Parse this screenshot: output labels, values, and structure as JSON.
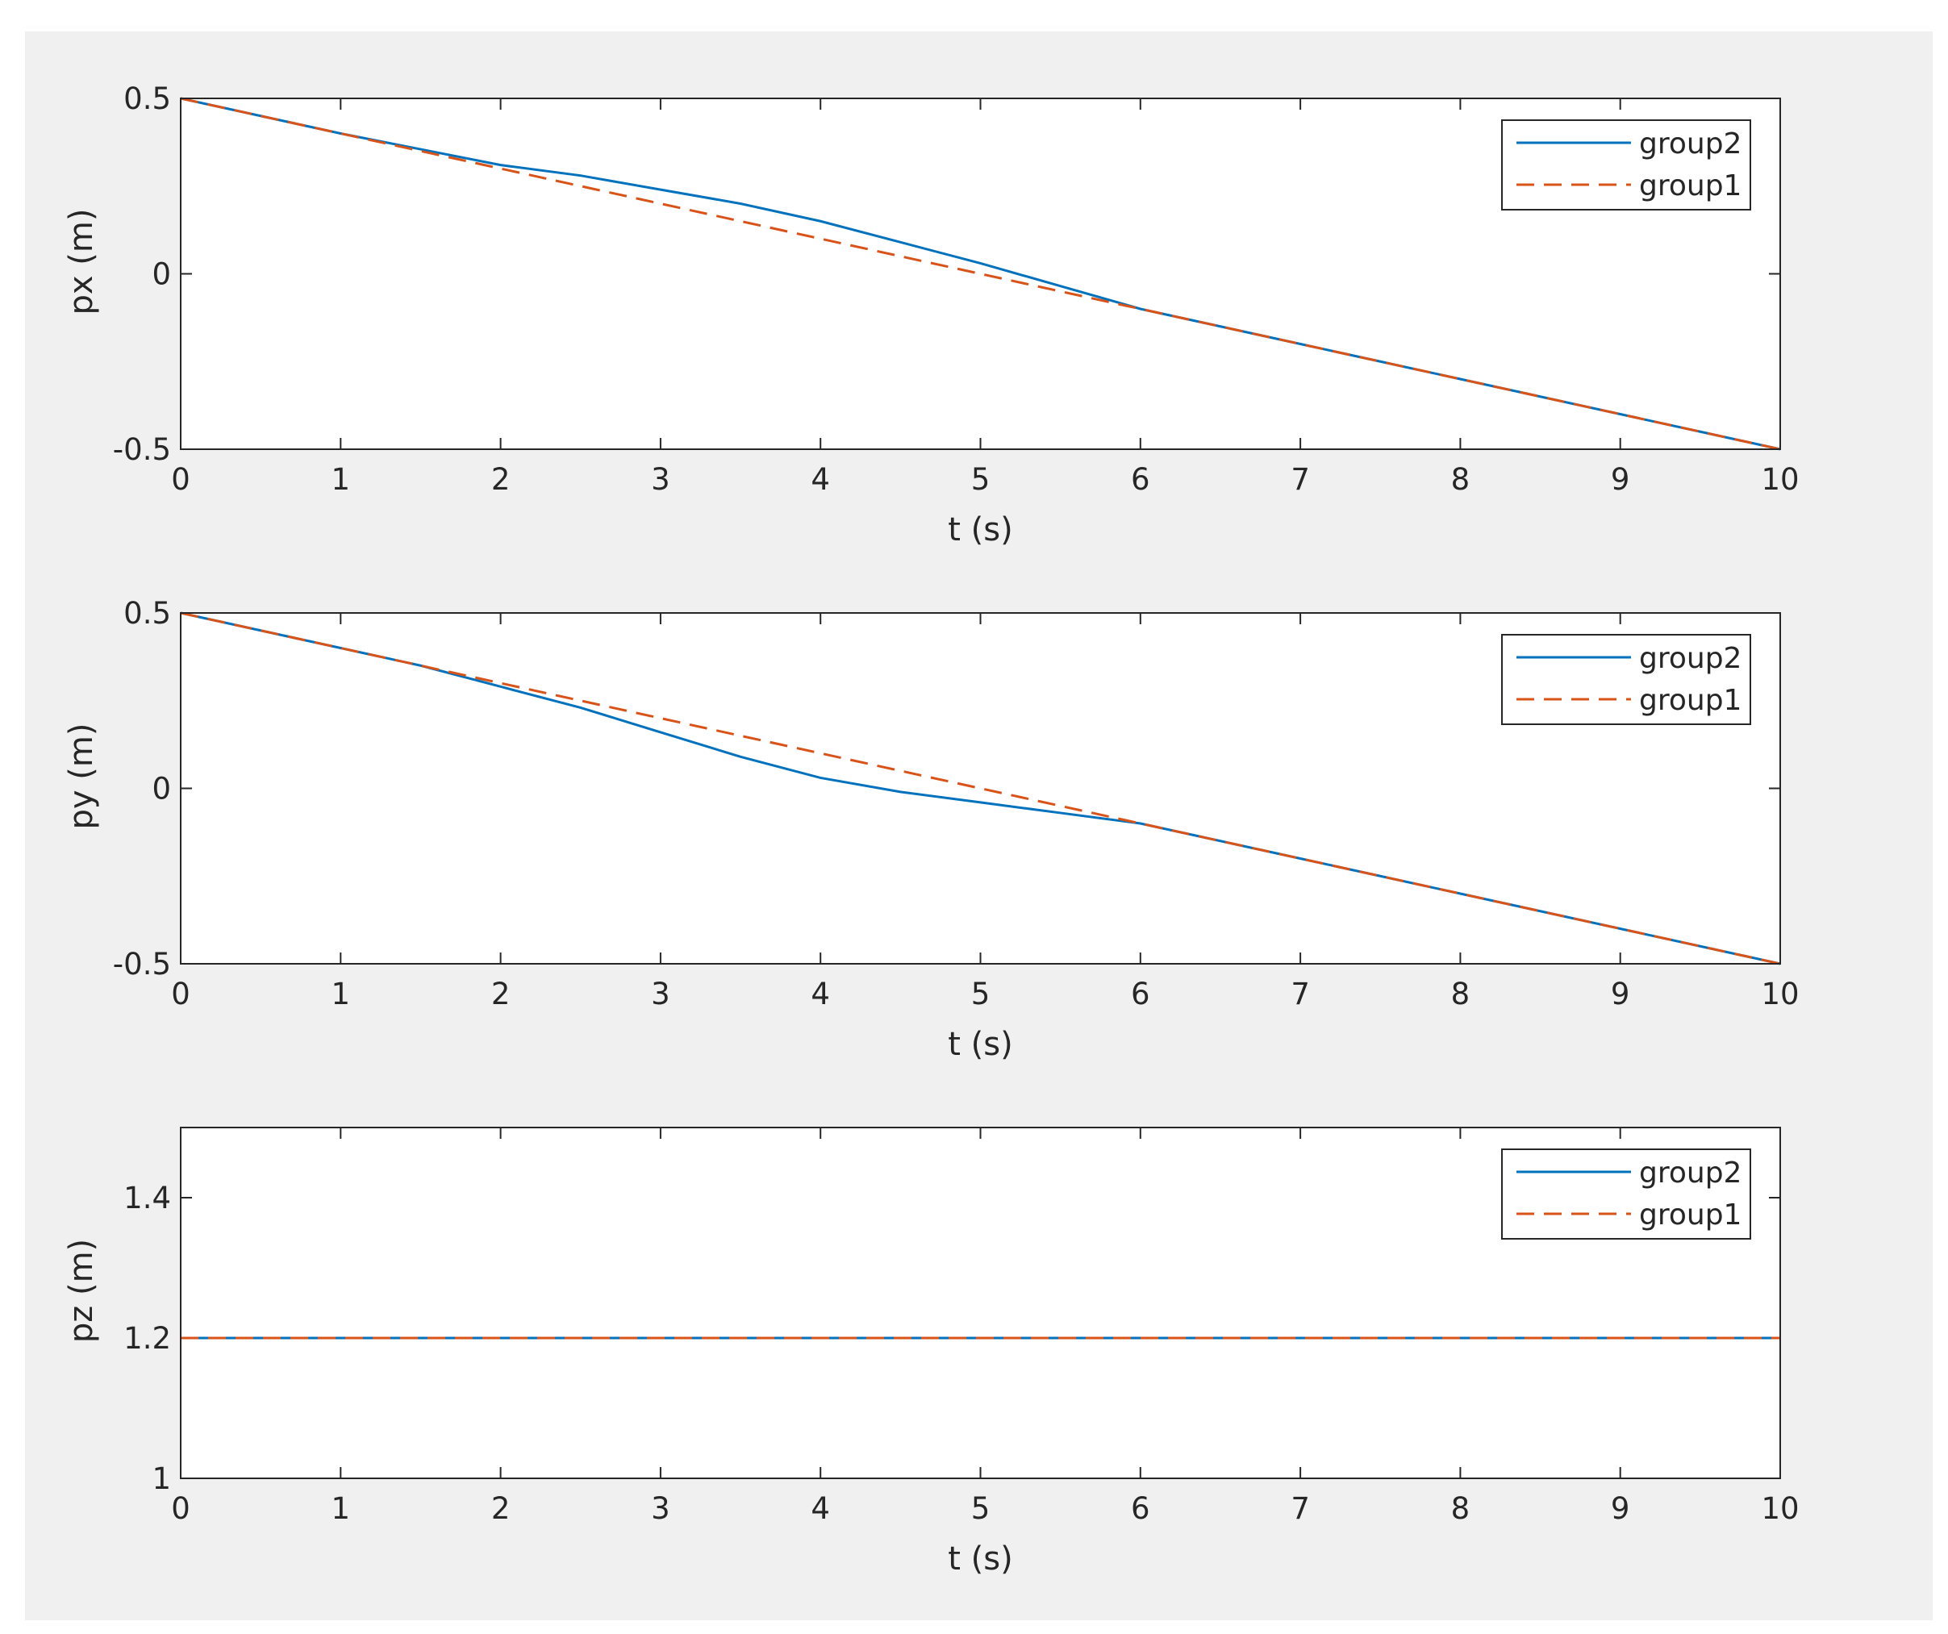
{
  "chart_data": [
    {
      "type": "line",
      "xlabel": "t (s)",
      "ylabel": "px (m)",
      "x": [
        0,
        0.5,
        1,
        1.5,
        2,
        2.5,
        3,
        3.5,
        4,
        4.5,
        5,
        5.5,
        6,
        6.5,
        7,
        7.5,
        8,
        8.5,
        9,
        9.5,
        10
      ],
      "series": [
        {
          "name": "group2",
          "color": "#0072BD",
          "line_style": "solid",
          "values": [
            0.5,
            0.45,
            0.4,
            0.355,
            0.31,
            0.28,
            0.24,
            0.2,
            0.15,
            0.09,
            0.03,
            -0.035,
            -0.1,
            -0.15,
            -0.2,
            -0.25,
            -0.3,
            -0.35,
            -0.4,
            -0.45,
            -0.5
          ]
        },
        {
          "name": "group1",
          "color": "#D95319",
          "line_style": "dashed",
          "values": [
            0.5,
            0.45,
            0.4,
            0.35,
            0.3,
            0.25,
            0.2,
            0.15,
            0.1,
            0.05,
            0,
            -0.05,
            -0.1,
            -0.15,
            -0.2,
            -0.25,
            -0.3,
            -0.35,
            -0.4,
            -0.45,
            -0.5
          ]
        }
      ],
      "xlim": [
        0,
        10
      ],
      "xticks": [
        0,
        1,
        2,
        3,
        4,
        5,
        6,
        7,
        8,
        9,
        10
      ],
      "ylim": [
        -0.5,
        0.5
      ],
      "yticks": [
        -0.5,
        0,
        0.5
      ],
      "legend": "upper right"
    },
    {
      "type": "line",
      "xlabel": "t (s)",
      "ylabel": "py (m)",
      "x": [
        0,
        0.5,
        1,
        1.5,
        2,
        2.5,
        3,
        3.5,
        4,
        4.5,
        5,
        5.5,
        6,
        6.5,
        7,
        7.5,
        8,
        8.5,
        9,
        9.5,
        10
      ],
      "series": [
        {
          "name": "group2",
          "color": "#0072BD",
          "line_style": "solid",
          "values": [
            0.5,
            0.45,
            0.4,
            0.35,
            0.29,
            0.23,
            0.16,
            0.09,
            0.03,
            -0.01,
            -0.04,
            -0.07,
            -0.1,
            -0.15,
            -0.2,
            -0.25,
            -0.3,
            -0.35,
            -0.4,
            -0.45,
            -0.5
          ]
        },
        {
          "name": "group1",
          "color": "#D95319",
          "line_style": "dashed",
          "values": [
            0.5,
            0.45,
            0.4,
            0.35,
            0.3,
            0.25,
            0.2,
            0.15,
            0.1,
            0.05,
            0,
            -0.05,
            -0.1,
            -0.15,
            -0.2,
            -0.25,
            -0.3,
            -0.35,
            -0.4,
            -0.45,
            -0.5
          ]
        }
      ],
      "xlim": [
        0,
        10
      ],
      "xticks": [
        0,
        1,
        2,
        3,
        4,
        5,
        6,
        7,
        8,
        9,
        10
      ],
      "ylim": [
        -0.5,
        0.5
      ],
      "yticks": [
        -0.5,
        0,
        0.5
      ],
      "legend": "upper right"
    },
    {
      "type": "line",
      "xlabel": "t (s)",
      "ylabel": "pz (m)",
      "x": [
        0,
        10
      ],
      "series": [
        {
          "name": "group2",
          "color": "#0072BD",
          "line_style": "solid",
          "values": [
            1.2,
            1.2
          ]
        },
        {
          "name": "group1",
          "color": "#D95319",
          "line_style": "dashed",
          "values": [
            1.2,
            1.2
          ]
        }
      ],
      "xlim": [
        0,
        10
      ],
      "xticks": [
        0,
        1,
        2,
        3,
        4,
        5,
        6,
        7,
        8,
        9,
        10
      ],
      "ylim": [
        1,
        1.5
      ],
      "yticks": [
        1,
        1.2,
        1.4
      ],
      "legend": "upper right"
    }
  ]
}
